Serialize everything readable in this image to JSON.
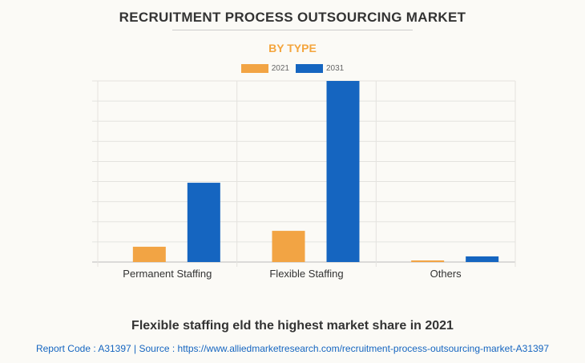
{
  "chart_data": {
    "type": "bar",
    "title": "RECRUITMENT PROCESS OUTSOURCING MARKET",
    "subtitle": "BY TYPE",
    "categories": [
      "Permanent Staffing",
      "Flexible Staffing",
      "Others"
    ],
    "series": [
      {
        "name": "2021",
        "color": "#f2a444",
        "values": [
          0.76,
          1.55,
          0.08
        ]
      },
      {
        "name": "2031",
        "color": "#1565c0",
        "values": [
          3.94,
          9.0,
          0.28
        ]
      }
    ],
    "ylim": [
      0,
      9
    ],
    "grid": true,
    "legend": "top-center",
    "xlabel": "",
    "ylabel": ""
  },
  "caption": "Flexible staffing eld the highest market share in 2021",
  "footer": "Report Code : A31397  |  Source : https://www.alliedmarketresearch.com/recruitment-process-outsourcing-market-A31397"
}
